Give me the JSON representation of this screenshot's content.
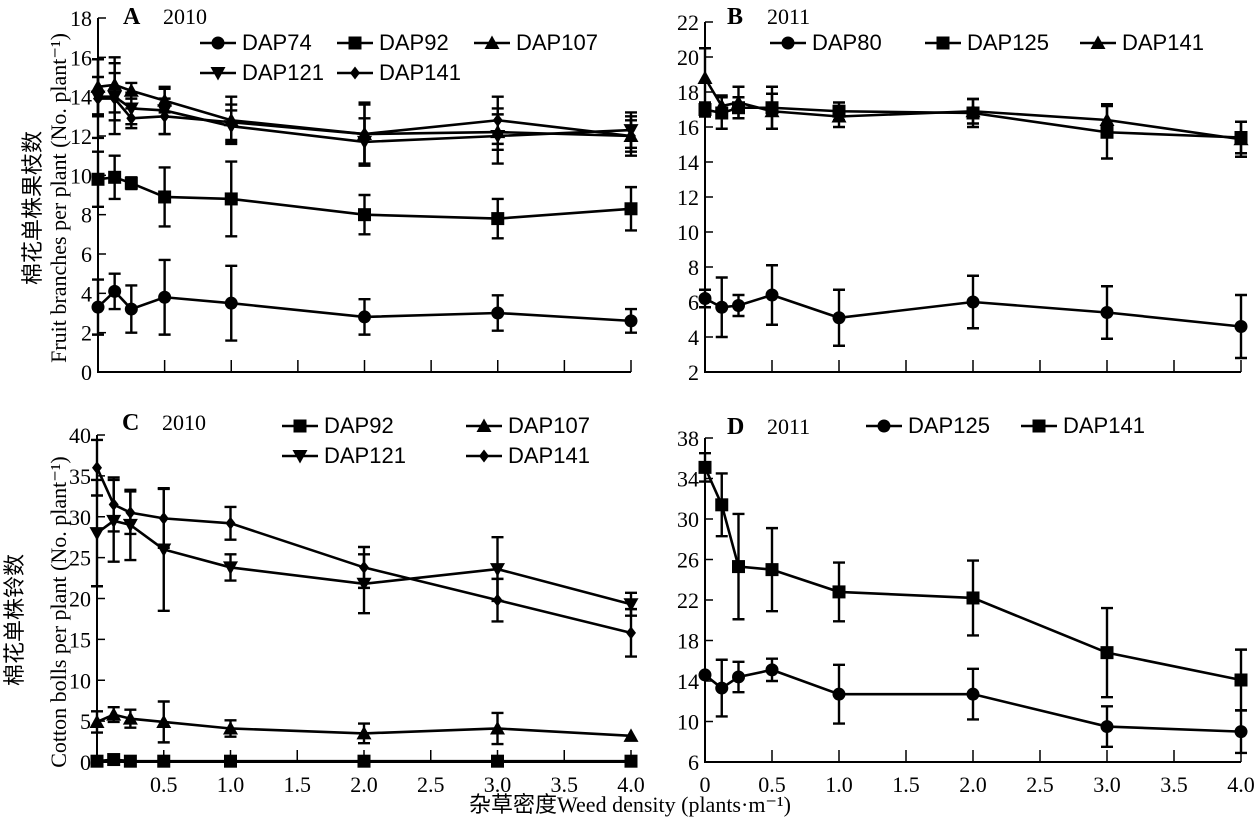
{
  "figure": {
    "xlabel": "杂草密度Weed density (plants·m⁻¹)",
    "ylabel_top_cn": "棉花单株果枝数",
    "ylabel_top_en": "Fruit branches per plant (No. plant⁻¹)",
    "ylabel_bottom_cn": "棉花单株铃数",
    "ylabel_bottom_en": "Cotton bolls per plant (No. plant⁻¹)"
  },
  "chart_data": [
    {
      "id": "A",
      "type": "line",
      "panel_letter": "A",
      "year": "2010",
      "title": "A 2010",
      "xlabel": "",
      "ylabel": "棉花单株果枝数 Fruit branches per plant (No. plant⁻¹)",
      "xlim": [
        0,
        4.0
      ],
      "ylim": [
        0,
        18
      ],
      "xticks": [
        0,
        0.5,
        1.0,
        1.5,
        2.0,
        2.5,
        3.0,
        3.5,
        4.0
      ],
      "xtick_labels": [
        "",
        "",
        "",
        "",
        "",
        "",
        "",
        "",
        ""
      ],
      "yticks": [
        0,
        2,
        4,
        6,
        8,
        10,
        12,
        14,
        16,
        18
      ],
      "ytick_labels": [
        "0",
        "2",
        "4",
        "6",
        "8",
        "10",
        "12",
        "14",
        "16",
        "18"
      ],
      "legend_position": "top-right",
      "legend_columns": 3,
      "x": [
        0,
        0.125,
        0.25,
        0.5,
        1.0,
        2.0,
        3.0,
        4.0
      ],
      "series": [
        {
          "name": "DAP74",
          "marker": "circle",
          "values": [
            3.3,
            4.1,
            3.2,
            3.8,
            3.5,
            2.8,
            3.0,
            2.6
          ],
          "errors": [
            1.4,
            0.9,
            1.2,
            1.9,
            1.9,
            0.9,
            0.9,
            0.6
          ]
        },
        {
          "name": "DAP92",
          "marker": "square",
          "values": [
            9.8,
            9.9,
            9.6,
            8.9,
            8.8,
            8.0,
            7.8,
            8.3
          ],
          "errors": [
            1.4,
            1.1,
            0.3,
            1.5,
            1.9,
            1.0,
            1.0,
            1.1
          ]
        },
        {
          "name": "DAP107",
          "marker": "triangle-up",
          "values": [
            14.5,
            14.6,
            14.3,
            13.8,
            12.8,
            12.1,
            12.2,
            12.0
          ],
          "errors": [
            1.4,
            1.4,
            0.4,
            0.6,
            1.2,
            1.5,
            0.9,
            0.8
          ]
        },
        {
          "name": "DAP121",
          "marker": "triangle-down",
          "values": [
            14.0,
            14.0,
            13.4,
            13.3,
            12.5,
            11.7,
            12.0,
            12.3
          ],
          "errors": [
            1.0,
            1.2,
            0.8,
            1.2,
            0.8,
            1.2,
            1.4,
            0.9
          ]
        },
        {
          "name": "DAP141",
          "marker": "diamond",
          "values": [
            13.9,
            13.9,
            12.9,
            13.0,
            12.7,
            12.1,
            12.8,
            12.0
          ],
          "errors": [
            2.0,
            1.8,
            0.5,
            0.9,
            0.9,
            1.6,
            1.2,
            1.0
          ]
        }
      ]
    },
    {
      "id": "B",
      "type": "line",
      "panel_letter": "B",
      "year": "2011",
      "title": "B 2011",
      "xlabel": "",
      "ylabel": "",
      "xlim": [
        0,
        4.0
      ],
      "ylim": [
        2,
        22
      ],
      "xticks": [
        0,
        0.5,
        1.0,
        1.5,
        2.0,
        2.5,
        3.0,
        3.5,
        4.0
      ],
      "xtick_labels": [
        "",
        "",
        "",
        "",
        "",
        "",
        "",
        "",
        ""
      ],
      "yticks": [
        2,
        4,
        6,
        8,
        10,
        12,
        14,
        16,
        18,
        20,
        22
      ],
      "ytick_labels": [
        "2",
        "4",
        "6",
        "8",
        "10",
        "12",
        "14",
        "16",
        "18",
        "20",
        "22"
      ],
      "legend_position": "top-right",
      "legend_columns": 3,
      "x": [
        0,
        0.125,
        0.25,
        0.5,
        1.0,
        2.0,
        3.0,
        4.0
      ],
      "series": [
        {
          "name": "DAP80",
          "marker": "circle",
          "values": [
            6.2,
            5.7,
            5.8,
            6.4,
            5.1,
            6.0,
            5.4,
            4.6
          ],
          "errors": [
            0.5,
            1.7,
            0.6,
            1.7,
            1.6,
            1.5,
            1.5,
            1.8
          ]
        },
        {
          "name": "DAP125",
          "marker": "square",
          "values": [
            17.0,
            16.8,
            17.1,
            17.1,
            16.9,
            16.8,
            15.7,
            15.4
          ],
          "errors": [
            0.4,
            0.9,
            0.6,
            1.2,
            0.5,
            0.8,
            1.5,
            0.9
          ]
        },
        {
          "name": "DAP141",
          "marker": "triangle-up",
          "values": [
            18.8,
            17.2,
            17.4,
            16.9,
            16.6,
            16.9,
            16.4,
            15.3
          ],
          "errors": [
            1.7,
            0.6,
            0.9,
            1.0,
            0.6,
            0.7,
            0.9,
            1.0
          ]
        }
      ]
    },
    {
      "id": "C",
      "type": "line",
      "panel_letter": "C",
      "year": "2010",
      "title": "C 2010",
      "xlabel": "",
      "ylabel": "棉花单株铃数 Cotton bolls per plant (No. plant⁻¹)",
      "xlim": [
        0,
        4.0
      ],
      "ylim": [
        0,
        40
      ],
      "xticks": [
        0,
        0.5,
        1.0,
        1.5,
        2.0,
        2.5,
        3.0,
        3.5,
        4.0
      ],
      "xtick_labels": [
        "",
        "0.5",
        "1.0",
        "1.5",
        "2.0",
        "2.5",
        "3.0",
        "3.5",
        "4.0"
      ],
      "yticks": [
        0,
        5,
        10,
        15,
        20,
        25,
        30,
        35,
        40
      ],
      "ytick_labels": [
        "0",
        "5",
        "10",
        "15",
        "20",
        "25",
        "30",
        "35",
        "40"
      ],
      "legend_position": "top-right",
      "legend_columns": 2,
      "x": [
        0,
        0.125,
        0.25,
        0.5,
        1.0,
        2.0,
        3.0,
        4.0
      ],
      "series": [
        {
          "name": "DAP92",
          "marker": "square",
          "values": [
            0.1,
            0.3,
            0.1,
            0.1,
            0.1,
            0.1,
            0.1,
            0.1
          ],
          "errors": [
            0,
            0,
            0,
            0,
            0,
            0,
            0,
            0
          ]
        },
        {
          "name": "DAP107",
          "marker": "triangle-up",
          "values": [
            4.9,
            5.8,
            5.3,
            4.9,
            4.1,
            3.5,
            4.1,
            3.2
          ],
          "errors": [
            1.3,
            0.9,
            1.1,
            2.5,
            1.0,
            1.2,
            1.9,
            0
          ]
        },
        {
          "name": "DAP121",
          "marker": "triangle-down",
          "values": [
            28.0,
            29.5,
            29.0,
            26.0,
            23.8,
            21.8,
            23.6,
            19.3
          ],
          "errors": [
            6.5,
            5.0,
            4.3,
            7.5,
            1.6,
            3.6,
            3.9,
            1.4
          ]
        },
        {
          "name": "DAP141",
          "marker": "diamond",
          "values": [
            36.0,
            31.5,
            30.5,
            29.8,
            29.2,
            23.8,
            19.8,
            15.8
          ],
          "errors": [
            3.4,
            3.3,
            2.6,
            3.6,
            2.0,
            2.5,
            2.6,
            2.9
          ]
        }
      ]
    },
    {
      "id": "D",
      "type": "line",
      "panel_letter": "D",
      "year": "2011",
      "title": "D 2011",
      "xlabel": "",
      "ylabel": "",
      "xlim": [
        0,
        4.0
      ],
      "ylim": [
        6,
        38
      ],
      "xticks": [
        0,
        0.5,
        1.0,
        1.5,
        2.0,
        2.5,
        3.0,
        3.5,
        4.0
      ],
      "xtick_labels": [
        "0",
        "0.5",
        "1.0",
        "1.5",
        "2.0",
        "2.5",
        "3.0",
        "3.5",
        "4.0"
      ],
      "yticks": [
        6,
        10,
        14,
        18,
        22,
        26,
        30,
        34,
        38
      ],
      "ytick_labels": [
        "6",
        "10",
        "14",
        "18",
        "22",
        "26",
        "30",
        "34",
        "38"
      ],
      "legend_position": "top-right",
      "legend_columns": 2,
      "x": [
        0,
        0.125,
        0.25,
        0.5,
        1.0,
        2.0,
        3.0,
        4.0
      ],
      "series": [
        {
          "name": "DAP125",
          "marker": "circle",
          "values": [
            14.6,
            13.3,
            14.4,
            15.1,
            12.7,
            12.7,
            9.5,
            9.0
          ],
          "errors": [
            0,
            2.8,
            1.5,
            1.1,
            2.9,
            2.5,
            2.0,
            2.1
          ]
        },
        {
          "name": "DAP141",
          "marker": "square",
          "values": [
            35.1,
            31.4,
            25.3,
            25.0,
            22.8,
            22.2,
            16.8,
            14.1
          ],
          "errors": [
            1.4,
            3.1,
            5.2,
            4.1,
            2.9,
            3.7,
            4.4,
            3.0
          ]
        }
      ]
    }
  ]
}
